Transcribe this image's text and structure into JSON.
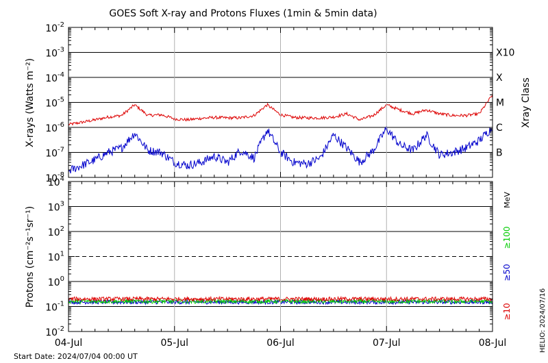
{
  "chart_data": [
    {
      "type": "line",
      "title": "GOES Soft X-ray and Protons Fluxes   (1min & 5min data)",
      "ylabel": "X-rays (Watts m⁻²)",
      "yscale": "log",
      "ylim": [
        1e-08,
        0.01
      ],
      "y_tick_labels": [
        {
          "base": "10",
          "exp": "-8"
        },
        {
          "base": "10",
          "exp": "-7"
        },
        {
          "base": "10",
          "exp": "-6"
        },
        {
          "base": "10",
          "exp": "-5"
        },
        {
          "base": "10",
          "exp": "-4"
        },
        {
          "base": "10",
          "exp": "-3"
        },
        {
          "base": "10",
          "exp": "-2"
        }
      ],
      "right_axis_label": "Xray Class",
      "class_labels": [
        {
          "label": "B",
          "flux": 1e-07
        },
        {
          "label": "C",
          "flux": 1e-06
        },
        {
          "label": "M",
          "flux": 1e-05
        },
        {
          "label": "X",
          "flux": 0.0001
        },
        {
          "label": "X10",
          "flux": 0.001
        }
      ],
      "gridlines": [
        1e-07,
        1e-06,
        1e-05,
        0.0001,
        0.001
      ],
      "series": [
        {
          "color": "#dd0000",
          "x": [
            "07/04 00:00",
            "07/04 03:00",
            "07/04 06:00",
            "07/04 09:00",
            "07/04 12:00",
            "07/04 15:00",
            "07/04 18:00",
            "07/04 21:00",
            "07/05 00:00",
            "07/05 03:00",
            "07/05 06:00",
            "07/05 09:00",
            "07/05 12:00",
            "07/05 15:00",
            "07/05 18:00",
            "07/05 21:00",
            "07/06 00:00",
            "07/06 03:00",
            "07/06 06:00",
            "07/06 09:00",
            "07/06 12:00",
            "07/06 15:00",
            "07/06 18:00",
            "07/06 21:00",
            "07/07 00:00",
            "07/07 03:00",
            "07/07 06:00",
            "07/07 09:00",
            "07/07 12:00",
            "07/07 15:00",
            "07/07 18:00",
            "07/07 21:00",
            "07/08 00:00"
          ],
          "y": [
            1.3e-06,
            1.6e-06,
            2e-06,
            2.6e-06,
            3e-06,
            8e-06,
            3e-06,
            3.2e-06,
            2.2e-06,
            2e-06,
            2.3e-06,
            2.5e-06,
            2.4e-06,
            2.4e-06,
            3e-06,
            8e-06,
            3.2e-06,
            2.5e-06,
            2.4e-06,
            2.4e-06,
            2.6e-06,
            3.5e-06,
            2e-06,
            3e-06,
            8e-06,
            5e-06,
            3.5e-06,
            5e-06,
            3.5e-06,
            3e-06,
            3e-06,
            3.5e-06,
            2e-05
          ]
        },
        {
          "color": "#0000cc",
          "x": [
            "07/04 00:00",
            "07/04 03:00",
            "07/04 06:00",
            "07/04 09:00",
            "07/04 12:00",
            "07/04 15:00",
            "07/04 18:00",
            "07/04 21:00",
            "07/05 00:00",
            "07/05 03:00",
            "07/05 06:00",
            "07/05 09:00",
            "07/05 12:00",
            "07/05 15:00",
            "07/05 18:00",
            "07/05 21:00",
            "07/06 00:00",
            "07/06 03:00",
            "07/06 06:00",
            "07/06 09:00",
            "07/06 12:00",
            "07/06 15:00",
            "07/06 18:00",
            "07/06 21:00",
            "07/07 00:00",
            "07/07 03:00",
            "07/07 06:00",
            "07/07 09:00",
            "07/07 12:00",
            "07/07 15:00",
            "07/07 18:00",
            "07/07 21:00",
            "07/08 00:00"
          ],
          "y": [
            1.8e-08,
            3e-08,
            5e-08,
            1e-07,
            1.5e-07,
            6e-07,
            1.2e-07,
            1e-07,
            4e-08,
            3e-08,
            4e-08,
            7e-08,
            4e-08,
            1.2e-07,
            6e-08,
            8e-07,
            1e-07,
            4e-08,
            3.5e-08,
            6e-08,
            5e-07,
            1.5e-07,
            4e-08,
            1.2e-07,
            9e-07,
            2e-07,
            1.2e-07,
            5e-07,
            8e-08,
            1e-07,
            1.5e-07,
            3e-07,
            1e-06
          ]
        }
      ]
    },
    {
      "type": "line",
      "ylabel": "Protons (cm⁻²s⁻¹sr⁻¹)",
      "yscale": "log",
      "ylim": [
        0.01,
        10000
      ],
      "y_tick_labels": [
        {
          "base": "10",
          "exp": "-2"
        },
        {
          "base": "10",
          "exp": "-1"
        },
        {
          "base": "10",
          "exp": "0"
        },
        {
          "base": "10",
          "exp": "1"
        },
        {
          "base": "10",
          "exp": "2"
        },
        {
          "base": "10",
          "exp": "3"
        },
        {
          "base": "10",
          "exp": "4"
        }
      ],
      "gridlines": [
        0.1,
        1,
        100,
        1000
      ],
      "dashed_line": 10,
      "unit_label": "MeV",
      "series": [
        {
          "name": "≥10",
          "color": "#dd0000",
          "level": 0.2
        },
        {
          "name": "≥50",
          "color": "#0000cc",
          "level": 0.15
        },
        {
          "name": "≥100",
          "color": "#00cc00",
          "level": 0.16
        }
      ]
    }
  ],
  "x_ticks": [
    "04-Jul",
    "05-Jul",
    "06-Jul",
    "07-Jul",
    "08-Jul"
  ],
  "start_date": "Start Date: 2024/07/04 00:00 UT",
  "watermark": "HELIO: 2024/07/16"
}
